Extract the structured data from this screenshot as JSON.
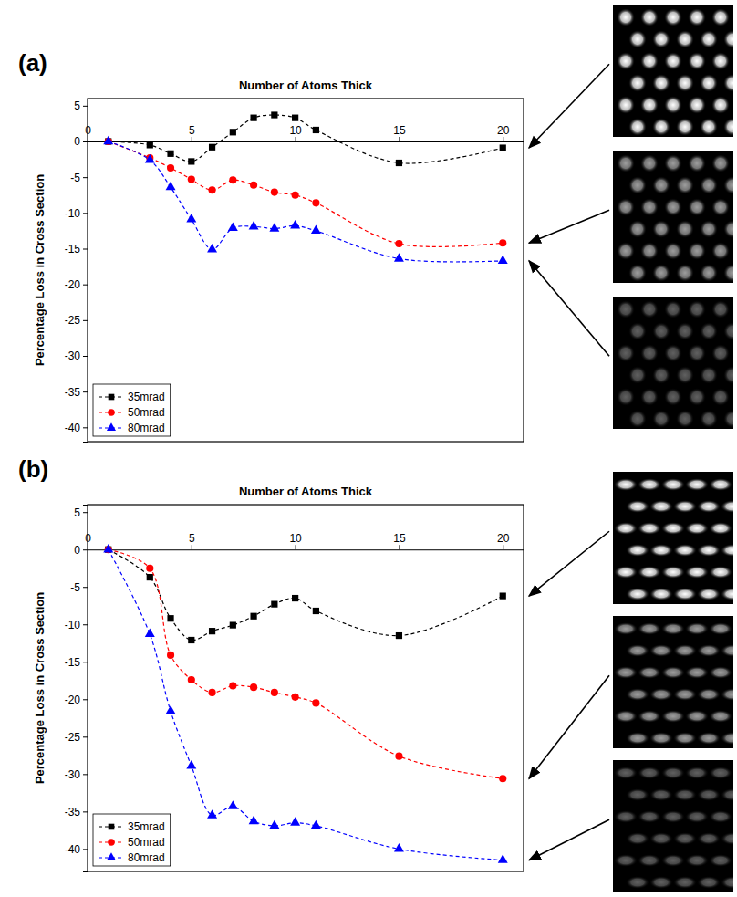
{
  "chart_data": [
    {
      "type": "line",
      "panel_label": "(a)",
      "x_label": "Number of Atoms Thick",
      "y_label": "Percentage Loss in Cross Section",
      "x": [
        1,
        3,
        4,
        5,
        6,
        7,
        8,
        9,
        10,
        11,
        15,
        20
      ],
      "series": [
        {
          "name": "35mrad",
          "color": "#000000",
          "marker": "square",
          "line_style": "dashed",
          "values": [
            0,
            -0.5,
            -1.7,
            -2.8,
            -0.8,
            1.3,
            3.3,
            3.7,
            3.3,
            1.6,
            -3.0,
            -0.9
          ]
        },
        {
          "name": "50mrad",
          "color": "#ff0000",
          "marker": "circle",
          "line_style": "dashed",
          "values": [
            0,
            -2.3,
            -3.7,
            -5.3,
            -6.8,
            -5.4,
            -6.1,
            -7.1,
            -7.5,
            -8.6,
            -14.3,
            -14.2
          ]
        },
        {
          "name": "80mrad",
          "color": "#0000ff",
          "marker": "triangle",
          "line_style": "dashed",
          "values": [
            0,
            -2.6,
            -6.4,
            -10.9,
            -15.1,
            -12.1,
            -11.9,
            -12.2,
            -11.8,
            -12.5,
            -16.4,
            -16.7
          ]
        }
      ],
      "xlim": [
        0,
        21
      ],
      "xticks": [
        0,
        5,
        10,
        15,
        20
      ],
      "ylim": [
        -42,
        6
      ],
      "yticks": [
        5,
        0,
        -5,
        -10,
        -15,
        -20,
        -25,
        -30,
        -35,
        -40
      ],
      "grid": false,
      "legend": "lower left"
    },
    {
      "type": "line",
      "panel_label": "(b)",
      "x_label": "Number of Atoms Thick",
      "y_label": "Percentage Loss in Cross Section",
      "x": [
        1,
        3,
        4,
        5,
        6,
        7,
        8,
        9,
        10,
        11,
        15,
        20
      ],
      "series": [
        {
          "name": "35mrad",
          "color": "#000000",
          "marker": "square",
          "line_style": "dashed",
          "values": [
            0,
            -3.7,
            -9.2,
            -12.1,
            -10.9,
            -10.1,
            -8.9,
            -7.3,
            -6.5,
            -8.2,
            -11.5,
            -6.2
          ]
        },
        {
          "name": "50mrad",
          "color": "#ff0000",
          "marker": "circle",
          "line_style": "dashed",
          "values": [
            0,
            -2.5,
            -14.1,
            -17.4,
            -19.1,
            -18.2,
            -18.4,
            -19.1,
            -19.7,
            -20.5,
            -27.6,
            -30.6
          ]
        },
        {
          "name": "80mrad",
          "color": "#0000ff",
          "marker": "triangle",
          "line_style": "dashed",
          "values": [
            0,
            -11.3,
            -21.6,
            -28.9,
            -35.5,
            -34.3,
            -36.3,
            -36.9,
            -36.5,
            -36.9,
            -40.0,
            -41.5
          ]
        }
      ],
      "xlim": [
        0,
        21
      ],
      "xticks": [
        0,
        5,
        10,
        15,
        20
      ],
      "ylim": [
        -43,
        6
      ],
      "yticks": [
        5,
        0,
        -5,
        -10,
        -15,
        -20,
        -25,
        -30,
        -35,
        -40
      ],
      "grid": false,
      "legend": "lower left"
    }
  ]
}
